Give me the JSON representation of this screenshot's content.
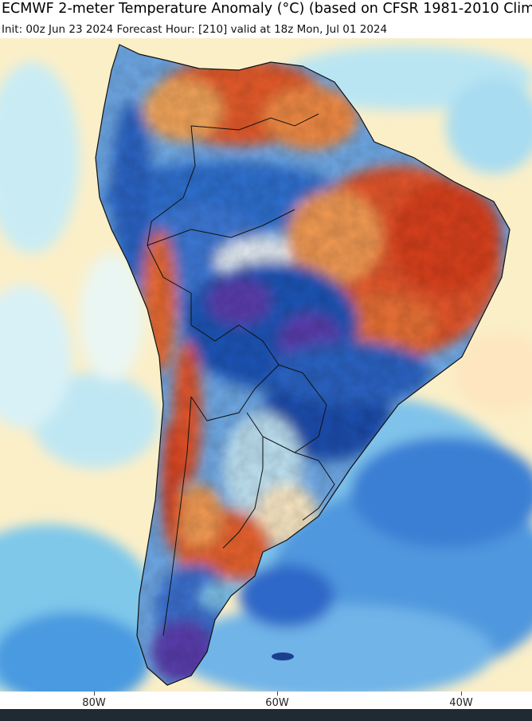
{
  "header": {
    "title": "ECMWF 2-meter Temperature Anomaly (°C) (based on CFSR 1981-2010 Clim",
    "subtitle": "Init: 00z Jun 23 2024   Forecast Hour: [210]   valid at 18z Mon, Jul 01 2024"
  },
  "map": {
    "region": "South America",
    "longitude_labels": [
      "80W",
      "60W",
      "40W"
    ],
    "colors": {
      "ocean_neutral": "#fdf3cf",
      "light_cold": "#9ddcf0",
      "cold": "#3f8fe0",
      "deep_cold": "#1b4fb3",
      "very_cold": "#5b3aa8",
      "warm": "#f0a24a",
      "hot": "#e0502a",
      "very_hot": "#c8231c",
      "border_line": "#111111"
    }
  }
}
